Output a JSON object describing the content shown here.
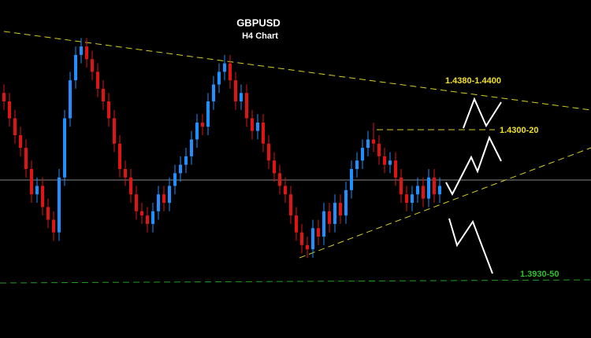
{
  "chart_data": {
    "type": "candlestick",
    "title": "GBPUSD",
    "subtitle": "H4 Chart",
    "up_color": "#1e90ff",
    "down_color": "#e01414",
    "ylim": [
      1.38,
      1.46
    ],
    "open": [
      1.438,
      1.436,
      1.432,
      1.428,
      1.425,
      1.42,
      1.414,
      1.416,
      1.411,
      1.408,
      1.405,
      1.418,
      1.432,
      1.441,
      1.447,
      1.449,
      1.446,
      1.443,
      1.439,
      1.436,
      1.432,
      1.426,
      1.42,
      1.418,
      1.414,
      1.41,
      1.409,
      1.407,
      1.41,
      1.414,
      1.412,
      1.416,
      1.419,
      1.421,
      1.423,
      1.427,
      1.431,
      1.43,
      1.436,
      1.44,
      1.443,
      1.445,
      1.441,
      1.436,
      1.438,
      1.432,
      1.429,
      1.431,
      1.426,
      1.422,
      1.419,
      1.416,
      1.414,
      1.409,
      1.405,
      1.402,
      1.401,
      1.406,
      1.404,
      1.41,
      1.407,
      1.412,
      1.409,
      1.415,
      1.42,
      1.422,
      1.425,
      1.427,
      1.426,
      1.423,
      1.421,
      1.422,
      1.418,
      1.414,
      1.412,
      1.414,
      1.416,
      1.413,
      1.418,
      1.414
    ],
    "high": [
      1.44,
      1.438,
      1.434,
      1.43,
      1.427,
      1.422,
      1.418,
      1.418,
      1.413,
      1.41,
      1.42,
      1.434,
      1.443,
      1.449,
      1.451,
      1.451,
      1.448,
      1.445,
      1.441,
      1.438,
      1.434,
      1.428,
      1.422,
      1.42,
      1.416,
      1.412,
      1.411,
      1.412,
      1.416,
      1.416,
      1.418,
      1.421,
      1.423,
      1.425,
      1.429,
      1.433,
      1.433,
      1.438,
      1.442,
      1.445,
      1.447,
      1.447,
      1.443,
      1.44,
      1.44,
      1.434,
      1.433,
      1.433,
      1.428,
      1.424,
      1.421,
      1.418,
      1.416,
      1.411,
      1.407,
      1.404,
      1.408,
      1.408,
      1.412,
      1.412,
      1.414,
      1.414,
      1.417,
      1.422,
      1.424,
      1.427,
      1.429,
      1.431,
      1.428,
      1.425,
      1.424,
      1.424,
      1.42,
      1.416,
      1.416,
      1.418,
      1.418,
      1.42,
      1.42,
      1.418
    ],
    "low": [
      1.434,
      1.43,
      1.426,
      1.423,
      1.418,
      1.412,
      1.412,
      1.409,
      1.406,
      1.403,
      1.403,
      1.416,
      1.43,
      1.439,
      1.445,
      1.444,
      1.441,
      1.437,
      1.434,
      1.43,
      1.424,
      1.418,
      1.416,
      1.412,
      1.408,
      1.407,
      1.405,
      1.405,
      1.408,
      1.41,
      1.41,
      1.414,
      1.417,
      1.419,
      1.421,
      1.425,
      1.428,
      1.428,
      1.434,
      1.438,
      1.441,
      1.439,
      1.434,
      1.434,
      1.43,
      1.427,
      1.427,
      1.424,
      1.42,
      1.417,
      1.414,
      1.412,
      1.407,
      1.403,
      1.4,
      1.399,
      1.399,
      1.402,
      1.402,
      1.405,
      1.405,
      1.407,
      1.407,
      1.413,
      1.418,
      1.42,
      1.423,
      1.424,
      1.421,
      1.419,
      1.419,
      1.416,
      1.412,
      1.41,
      1.41,
      1.412,
      1.411,
      1.411,
      1.412,
      1.412
    ],
    "close": [
      1.436,
      1.432,
      1.428,
      1.425,
      1.42,
      1.414,
      1.416,
      1.411,
      1.408,
      1.405,
      1.418,
      1.432,
      1.441,
      1.447,
      1.449,
      1.446,
      1.443,
      1.439,
      1.436,
      1.432,
      1.426,
      1.42,
      1.418,
      1.414,
      1.41,
      1.409,
      1.407,
      1.41,
      1.414,
      1.412,
      1.416,
      1.419,
      1.421,
      1.423,
      1.427,
      1.431,
      1.43,
      1.436,
      1.44,
      1.443,
      1.445,
      1.441,
      1.436,
      1.438,
      1.432,
      1.429,
      1.431,
      1.426,
      1.422,
      1.419,
      1.416,
      1.414,
      1.409,
      1.405,
      1.402,
      1.401,
      1.406,
      1.404,
      1.41,
      1.407,
      1.412,
      1.409,
      1.415,
      1.42,
      1.422,
      1.425,
      1.427,
      1.426,
      1.423,
      1.421,
      1.422,
      1.418,
      1.414,
      1.412,
      1.414,
      1.416,
      1.413,
      1.418,
      1.414,
      1.416
    ],
    "annotations": [
      "1.4380-1.4400",
      "1.4300-20",
      "1.3930-50"
    ]
  }
}
